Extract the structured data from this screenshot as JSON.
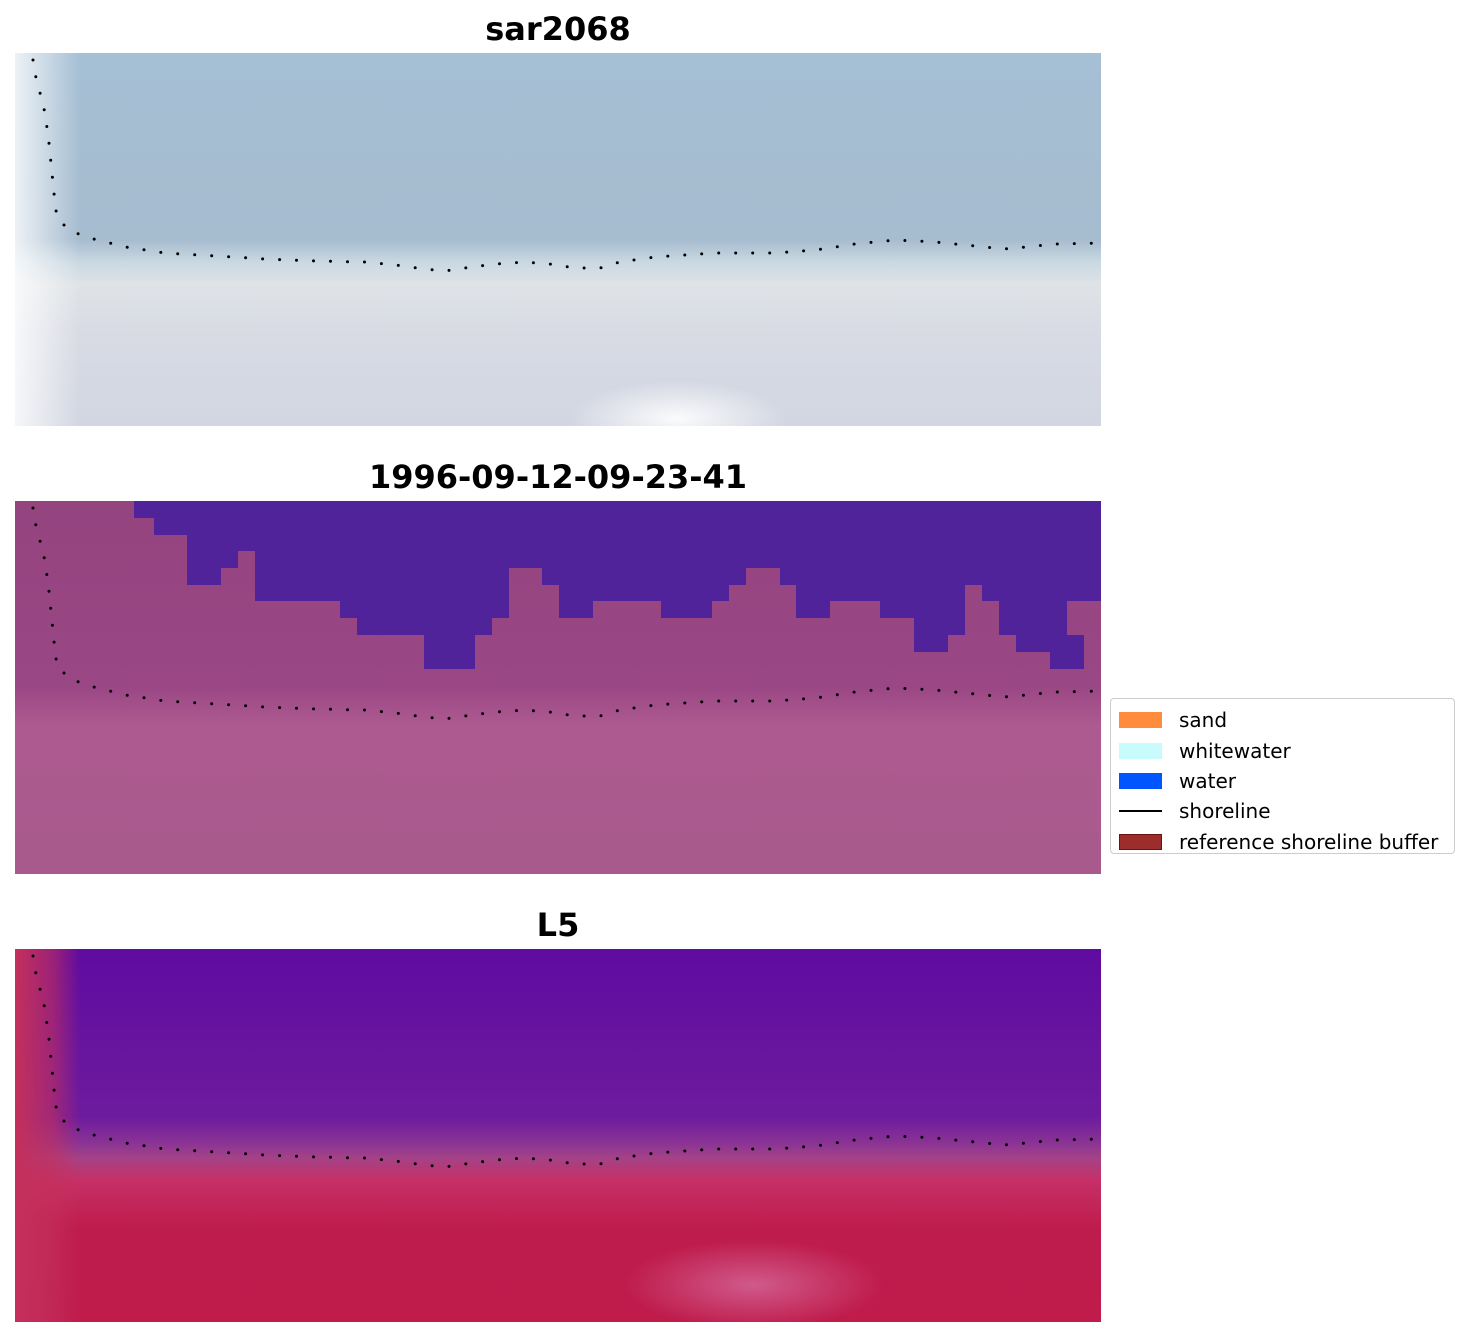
{
  "panels": [
    {
      "id": "rgb",
      "title": "sar2068"
    },
    {
      "id": "classification",
      "title": "1996-09-12-09-23-41"
    },
    {
      "id": "index",
      "title": "L5"
    }
  ],
  "legend": {
    "items": [
      {
        "label": "sand",
        "type": "patch",
        "color": "#ff8c3a"
      },
      {
        "label": "whitewater",
        "type": "patch",
        "color": "#c8fbfb"
      },
      {
        "label": "water",
        "type": "patch",
        "color": "#0055ff"
      },
      {
        "label": "shoreline",
        "type": "line",
        "color": "#000000"
      },
      {
        "label": "reference shoreline buffer",
        "type": "patch",
        "color": "#9b2d2d",
        "edge": "#6e1111"
      }
    ]
  },
  "colors": {
    "rgb_sky": "#a6bfd2",
    "rgb_surf": "#e6e6ea",
    "class_water": "#51239a",
    "class_land": "#9a4a88",
    "index_water": "#6a1aa0",
    "index_land": "#c0204f"
  }
}
